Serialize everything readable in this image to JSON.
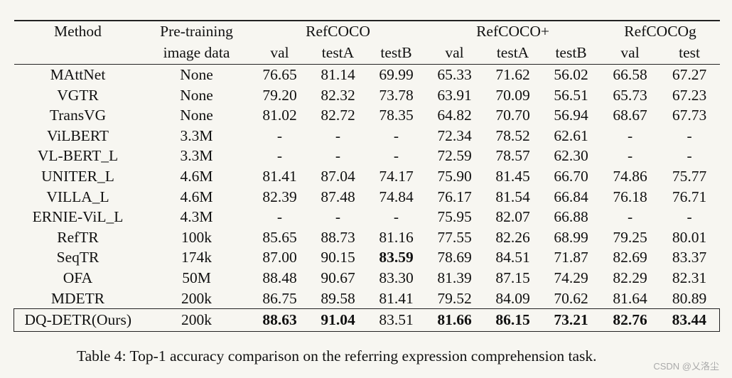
{
  "header": {
    "method": "Method",
    "pretrain_line1": "Pre-training",
    "pretrain_line2": "image data",
    "groups": [
      "RefCOCO",
      "RefCOCO+",
      "RefCOCOg"
    ],
    "subcols": [
      "val",
      "testA",
      "testB",
      "val",
      "testA",
      "testB",
      "val",
      "test"
    ]
  },
  "rows": [
    {
      "method": "MAttNet",
      "pretrain": "None",
      "vals": [
        "76.65",
        "81.14",
        "69.99",
        "65.33",
        "71.62",
        "56.02",
        "66.58",
        "67.27"
      ],
      "bold": []
    },
    {
      "method": "VGTR",
      "pretrain": "None",
      "vals": [
        "79.20",
        "82.32",
        "73.78",
        "63.91",
        "70.09",
        "56.51",
        "65.73",
        "67.23"
      ],
      "bold": []
    },
    {
      "method": "TransVG",
      "pretrain": "None",
      "vals": [
        "81.02",
        "82.72",
        "78.35",
        "64.82",
        "70.70",
        "56.94",
        "68.67",
        "67.73"
      ],
      "bold": []
    },
    {
      "method": "ViLBERT",
      "pretrain": "3.3M",
      "vals": [
        "-",
        "-",
        "-",
        "72.34",
        "78.52",
        "62.61",
        "-",
        "-"
      ],
      "bold": []
    },
    {
      "method": "VL-BERT_L",
      "pretrain": "3.3M",
      "vals": [
        "-",
        "-",
        "-",
        "72.59",
        "78.57",
        "62.30",
        "-",
        "-"
      ],
      "bold": []
    },
    {
      "method": "UNITER_L",
      "pretrain": "4.6M",
      "vals": [
        "81.41",
        "87.04",
        "74.17",
        "75.90",
        "81.45",
        "66.70",
        "74.86",
        "75.77"
      ],
      "bold": []
    },
    {
      "method": "VILLA_L",
      "pretrain": "4.6M",
      "vals": [
        "82.39",
        "87.48",
        "74.84",
        "76.17",
        "81.54",
        "66.84",
        "76.18",
        "76.71"
      ],
      "bold": []
    },
    {
      "method": "ERNIE-ViL_L",
      "pretrain": "4.3M",
      "vals": [
        "-",
        "-",
        "-",
        "75.95",
        "82.07",
        "66.88",
        "-",
        "-"
      ],
      "bold": []
    },
    {
      "method": "RefTR",
      "pretrain": "100k",
      "vals": [
        "85.65",
        "88.73",
        "81.16",
        "77.55",
        "82.26",
        "68.99",
        "79.25",
        "80.01"
      ],
      "bold": []
    },
    {
      "method": "SeqTR",
      "pretrain": "174k",
      "vals": [
        "87.00",
        "90.15",
        "83.59",
        "78.69",
        "84.51",
        "71.87",
        "82.69",
        "83.37"
      ],
      "bold": [
        2
      ]
    },
    {
      "method": "OFA",
      "pretrain": "50M",
      "vals": [
        "88.48",
        "90.67",
        "83.30",
        "81.39",
        "87.15",
        "74.29",
        "82.29",
        "82.31"
      ],
      "bold": []
    },
    {
      "method": "MDETR",
      "pretrain": "200k",
      "vals": [
        "86.75",
        "89.58",
        "81.41",
        "79.52",
        "84.09",
        "70.62",
        "81.64",
        "80.89"
      ],
      "bold": []
    }
  ],
  "last_row": {
    "method": "DQ-DETR(Ours)",
    "pretrain": "200k",
    "vals": [
      "88.63",
      "91.04",
      "83.51",
      "81.66",
      "86.15",
      "73.21",
      "82.76",
      "83.44"
    ],
    "bold": [
      0,
      1,
      3,
      4,
      5,
      6,
      7
    ]
  },
  "caption": "Table 4:  Top-1 accuracy comparison on the referring expression comprehension task.",
  "watermark": "CSDN @乂洛尘"
}
